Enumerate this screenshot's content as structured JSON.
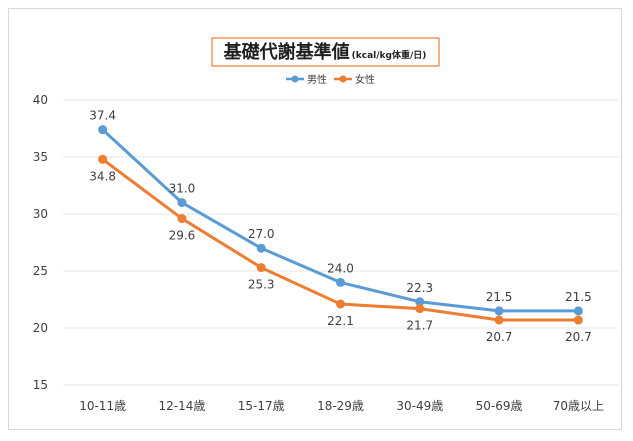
{
  "chart_data": {
    "type": "line",
    "title": "基礎代謝基準値",
    "title_unit": "(kcal/kg体重/日)",
    "categories": [
      "10-11歳",
      "12-14歳",
      "15-17歳",
      "18-29歳",
      "30-49歳",
      "50-69歳",
      "70歳以上"
    ],
    "series": [
      {
        "name": "男性",
        "color": "#5b9bd5",
        "values": [
          37.4,
          31.0,
          27.0,
          24.0,
          22.3,
          21.5,
          21.5
        ],
        "labels": [
          "37.4",
          "31.0",
          "27.0",
          "24.0",
          "22.3",
          "21.5",
          "21.5"
        ],
        "label_position": "above"
      },
      {
        "name": "女性",
        "color": "#ed7d31",
        "values": [
          34.8,
          29.6,
          25.3,
          22.1,
          21.7,
          20.7,
          20.7
        ],
        "labels": [
          "34.8",
          "29.6",
          "25.3",
          "22.1",
          "21.7",
          "20.7",
          "20.7"
        ],
        "label_position": "below"
      }
    ],
    "ylim": [
      15,
      40
    ],
    "yticks": [
      "15",
      "20",
      "25",
      "30",
      "35",
      "40"
    ],
    "grid": true,
    "legend_position": "top"
  }
}
